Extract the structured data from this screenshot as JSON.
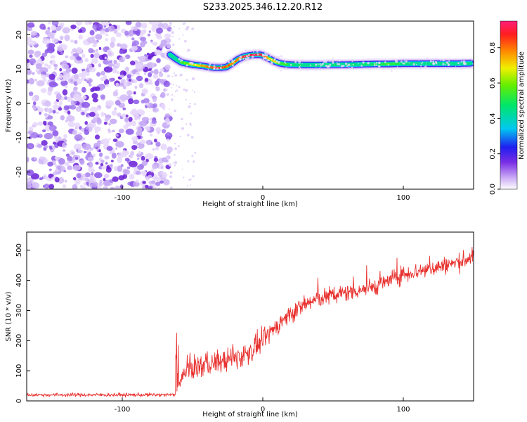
{
  "title": "S233.2025.346.12.20.R12",
  "colors": {
    "snr_line": "#e8322f",
    "noise_purple": "#6a1fd6",
    "frame": "#000000"
  },
  "chart_data": [
    {
      "type": "heatmap",
      "name": "spectrogram",
      "xlabel": "Height of straight line (km)",
      "ylabel": "Frequency (Hz)",
      "xlim": [
        -168,
        150
      ],
      "ylim": [
        -25,
        24
      ],
      "x_ticks": [
        {
          "value": -100,
          "label": "-100"
        },
        {
          "value": 0,
          "label": "0"
        },
        {
          "value": 100,
          "label": "100"
        }
      ],
      "y_ticks": [
        {
          "value": 20,
          "label": "20"
        },
        {
          "value": 10,
          "label": "10"
        },
        {
          "value": 0,
          "label": "0"
        },
        {
          "value": -10,
          "label": "-10"
        },
        {
          "value": -20,
          "label": "-20"
        }
      ],
      "noise_region_x": [
        -168,
        -66
      ],
      "ridge": {
        "x": [
          -66,
          -62,
          -58,
          -54,
          -50,
          -46,
          -42,
          -38,
          -34,
          -30,
          -26,
          -22,
          -18,
          -14,
          -10,
          -6,
          -2,
          0,
          4,
          8,
          12,
          16,
          20,
          30,
          40,
          50,
          60,
          70,
          80,
          90,
          100,
          110,
          120,
          130,
          140,
          148
        ],
        "freq_hz": [
          14.2,
          13.0,
          12.0,
          11.6,
          11.3,
          11.1,
          10.9,
          10.6,
          10.4,
          10.4,
          10.6,
          11.6,
          12.8,
          13.6,
          14.0,
          14.2,
          14.2,
          14.0,
          13.2,
          12.3,
          11.7,
          11.4,
          11.3,
          11.2,
          11.2,
          11.3,
          11.3,
          11.4,
          11.5,
          11.5,
          11.6,
          11.6,
          11.6,
          11.6,
          11.6,
          11.7
        ],
        "amplitude": [
          0.45,
          0.4,
          0.55,
          0.6,
          0.68,
          0.72,
          0.8,
          0.85,
          0.9,
          0.92,
          0.85,
          0.8,
          0.85,
          0.9,
          0.95,
          0.97,
          0.95,
          0.9,
          0.8,
          0.7,
          0.6,
          0.55,
          0.5,
          0.45,
          0.45,
          0.45,
          0.45,
          0.48,
          0.5,
          0.6,
          0.5,
          0.45,
          0.45,
          0.45,
          0.45,
          0.45
        ]
      },
      "colorbar": {
        "label": "Normalized spectral amplitude",
        "range": [
          0,
          0.95
        ],
        "ticks": [
          {
            "value": 0.0,
            "label": "0.0"
          },
          {
            "value": 0.2,
            "label": "0.2"
          },
          {
            "value": 0.4,
            "label": "0.4"
          },
          {
            "value": 0.6,
            "label": "0.6"
          },
          {
            "value": 0.8,
            "label": "0.8"
          }
        ]
      }
    },
    {
      "type": "line",
      "name": "snr",
      "xlabel": "Height of straight line (km)",
      "ylabel": "SNR (10 * v/v)",
      "xlim": [
        -168,
        150
      ],
      "ylim": [
        0,
        560
      ],
      "x_ticks": [
        {
          "value": -100,
          "label": "-100"
        },
        {
          "value": 0,
          "label": "0"
        },
        {
          "value": 100,
          "label": "100"
        }
      ],
      "y_ticks": [
        {
          "value": 0,
          "label": "0"
        },
        {
          "value": 100,
          "label": "100"
        },
        {
          "value": 200,
          "label": "200"
        },
        {
          "value": 300,
          "label": "300"
        },
        {
          "value": 400,
          "label": "400"
        },
        {
          "value": 500,
          "label": "500"
        }
      ],
      "trend": {
        "x": [
          -168,
          -100,
          -62,
          -56,
          -50,
          -40,
          -30,
          -20,
          -10,
          0,
          10,
          20,
          30,
          40,
          50,
          60,
          70,
          80,
          90,
          100,
          110,
          120,
          130,
          140,
          150
        ],
        "snr": [
          20,
          20,
          20,
          90,
          110,
          120,
          130,
          140,
          160,
          200,
          250,
          290,
          320,
          340,
          350,
          360,
          370,
          380,
          400,
          420,
          430,
          440,
          450,
          460,
          480
        ]
      }
    }
  ]
}
